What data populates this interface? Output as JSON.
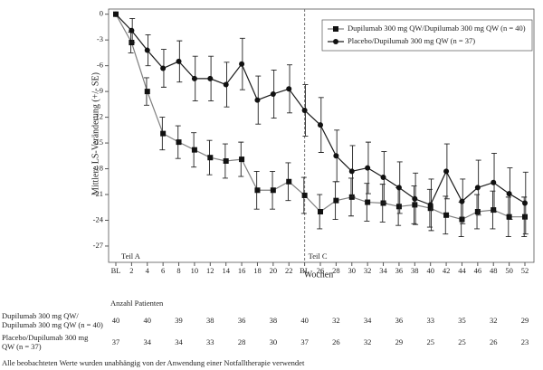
{
  "chart_data": {
    "type": "line",
    "y_label": "Mittlere LS-Veränderung (+/- SE)",
    "x_label": "Wochen",
    "categories": [
      "BL",
      "2",
      "4",
      "6",
      "8",
      "10",
      "12",
      "14",
      "16",
      "18",
      "20",
      "22",
      "BL",
      "26",
      "28",
      "30",
      "32",
      "34",
      "36",
      "38",
      "40",
      "42",
      "44",
      "46",
      "48",
      "50",
      "52"
    ],
    "series": [
      {
        "name": "Dupilumab 300 mg QW/Dupilumab 300 mg QW (n = 40)",
        "color": "#808080",
        "marker": "square",
        "values": [
          0,
          -3.3,
          -9.0,
          -13.9,
          -14.9,
          -15.8,
          -16.7,
          -17.1,
          -16.9,
          -20.5,
          -20.5,
          -19.5,
          -21.1,
          -23.0,
          -21.7,
          -21.3,
          -21.9,
          -22.0,
          -22.4,
          -22.2,
          -22.6,
          -23.4,
          -23.9,
          -23.0,
          -22.8,
          -23.6,
          -23.6
        ],
        "errors": [
          0,
          1.2,
          1.6,
          1.9,
          1.9,
          2.0,
          2.0,
          2.0,
          2.0,
          2.2,
          2.2,
          2.2,
          2.1,
          2.0,
          2.2,
          2.2,
          2.2,
          2.2,
          2.2,
          2.2,
          2.2,
          2.2,
          2.0,
          2.0,
          2.2,
          2.3,
          2.3
        ]
      },
      {
        "name": "Placebo/Dupilumab 300 mg QW (n = 37)",
        "color": "#1a1a1a",
        "marker": "circle",
        "values": [
          0,
          -1.9,
          -4.2,
          -6.3,
          -5.5,
          -7.5,
          -7.5,
          -8.2,
          -5.8,
          -10.0,
          -9.3,
          -8.7,
          -11.2,
          -12.9,
          -16.5,
          -18.3,
          -17.9,
          -19.0,
          -20.2,
          -21.5,
          -22.2,
          -18.3,
          -21.8,
          -20.2,
          -19.6,
          -20.9,
          -22.0
        ],
        "errors": [
          0,
          1.4,
          1.8,
          2.2,
          2.4,
          2.6,
          2.6,
          2.6,
          3.0,
          2.8,
          2.8,
          2.8,
          3.0,
          3.2,
          3.0,
          3.0,
          3.0,
          3.0,
          3.0,
          3.0,
          3.0,
          3.2,
          2.6,
          3.2,
          3.4,
          3.0,
          3.6
        ]
      }
    ],
    "ylim": [
      -28.9,
      0.6
    ],
    "yticks": [
      0,
      -3,
      -6,
      -9,
      -12,
      -15,
      -18,
      -21,
      -24,
      -27
    ],
    "divider_index": 12,
    "annotations": [
      "Teil A",
      "Teil C"
    ],
    "legend": "upper right"
  },
  "table": {
    "header": "Anzahl Patienten",
    "rows": [
      {
        "label": [
          "Dupilumab 300 mg QW/",
          "Dupilumab 300 mg QW (n = 40)"
        ],
        "values": [
          40,
          40,
          39,
          38,
          36,
          38,
          40,
          32,
          34,
          36,
          33,
          35,
          32,
          29
        ]
      },
      {
        "label": [
          "Placebo/Dupilumab 300 mg",
          "QW (n = 37)"
        ],
        "values": [
          37,
          34,
          34,
          33,
          28,
          30,
          37,
          26,
          32,
          29,
          25,
          25,
          26,
          23
        ]
      }
    ]
  },
  "footnote": "Alle beobachteten Werte wurden unabhängig von der Anwendung einer Notfalltherapie verwendet"
}
